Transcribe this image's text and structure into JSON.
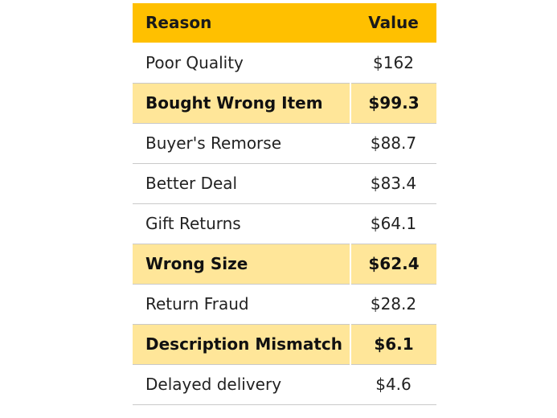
{
  "chart_data": {
    "type": "table",
    "columns": [
      "Reason",
      "Value"
    ],
    "highlight_color": "#ffe699",
    "header_color": "#ffc000",
    "rows": [
      {
        "reason": "Poor Quality",
        "value": "$162",
        "highlighted": false
      },
      {
        "reason": "Bought Wrong Item",
        "value": "$99.3",
        "highlighted": true
      },
      {
        "reason": "Buyer's Remorse",
        "value": "$88.7",
        "highlighted": false
      },
      {
        "reason": "Better Deal",
        "value": "$83.4",
        "highlighted": false
      },
      {
        "reason": "Gift Returns",
        "value": "$64.1",
        "highlighted": false
      },
      {
        "reason": "Wrong Size",
        "value": "$62.4",
        "highlighted": true
      },
      {
        "reason": "Return Fraud",
        "value": "$28.2",
        "highlighted": false
      },
      {
        "reason": "Description Mismatch",
        "value": "$6.1",
        "highlighted": true
      },
      {
        "reason": "Delayed delivery",
        "value": "$4.6",
        "highlighted": false
      }
    ]
  }
}
